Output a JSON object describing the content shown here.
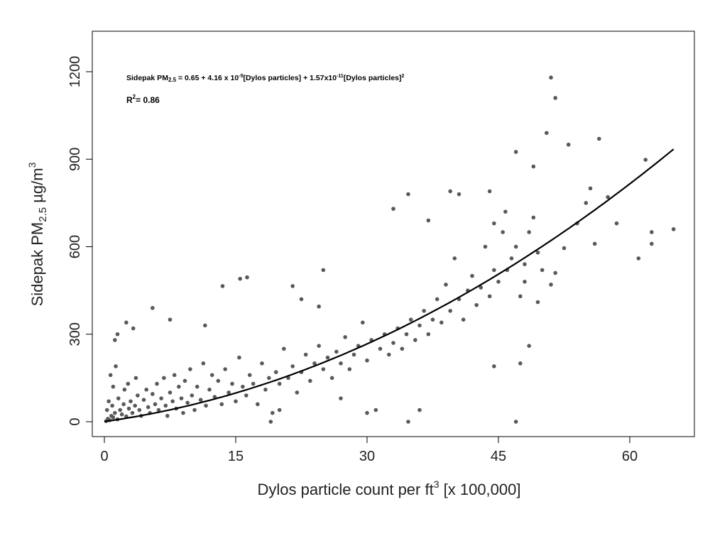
{
  "chart_data": {
    "type": "scatter",
    "title": "",
    "xlabel": "Dylos particle count per ft",
    "xlabel_sup": "3",
    "xlabel_suffix": " [x 100,000]",
    "ylabel": "Sidepak PM",
    "ylabel_sub": "2.5",
    "ylabel_suffix": " µg/m",
    "ylabel_sup": "3",
    "xlim": [
      -1.5,
      67
    ],
    "ylim": [
      -50,
      1340
    ],
    "xticks": [
      0,
      15,
      30,
      45,
      60
    ],
    "yticks": [
      0,
      300,
      600,
      900,
      1200
    ],
    "grid": false,
    "point_color": "#595959",
    "line_color": "#000000",
    "annotation": {
      "eq_prefix": "Sidepak PM",
      "eq_sub": "2.5",
      "eq_part1": " = 0.65 + 4.16 x 10",
      "eq_sup1": "-5",
      "eq_part2": "[Dylos particles] + 1.57x10",
      "eq_sup2": "-11",
      "eq_part3": "[Dylos particles]",
      "eq_sup3": "2",
      "r2_label": "R",
      "r2_sup": "2",
      "r2_value": "= 0.86"
    },
    "fit": {
      "intercept": 0.65,
      "linear": 4.16e-05,
      "quadratic": 1.57e-11,
      "x_scale": 100000,
      "x_range": [
        0,
        65
      ]
    },
    "points": [
      [
        0.2,
        2
      ],
      [
        0.4,
        10
      ],
      [
        0.6,
        5
      ],
      [
        0.8,
        20
      ],
      [
        1,
        15
      ],
      [
        1.2,
        30
      ],
      [
        1.5,
        8
      ],
      [
        1.8,
        40
      ],
      [
        2,
        25
      ],
      [
        2.2,
        60
      ],
      [
        2.5,
        18
      ],
      [
        2.8,
        45
      ],
      [
        3,
        70
      ],
      [
        3.2,
        30
      ],
      [
        3.5,
        55
      ],
      [
        3.8,
        90
      ],
      [
        4,
        40
      ],
      [
        4.2,
        20
      ],
      [
        4.5,
        75
      ],
      [
        4.8,
        110
      ],
      [
        5,
        50
      ],
      [
        5.2,
        30
      ],
      [
        5.5,
        95
      ],
      [
        5.8,
        60
      ],
      [
        6,
        130
      ],
      [
        6.2,
        40
      ],
      [
        6.5,
        80
      ],
      [
        6.8,
        150
      ],
      [
        7,
        55
      ],
      [
        7.2,
        20
      ],
      [
        7.5,
        100
      ],
      [
        7.8,
        70
      ],
      [
        8,
        160
      ],
      [
        8.2,
        45
      ],
      [
        8.5,
        120
      ],
      [
        8.8,
        80
      ],
      [
        9,
        30
      ],
      [
        9.2,
        140
      ],
      [
        9.5,
        65
      ],
      [
        9.8,
        180
      ],
      [
        10,
        90
      ],
      [
        10.3,
        40
      ],
      [
        10.6,
        120
      ],
      [
        11,
        75
      ],
      [
        11.3,
        200
      ],
      [
        11.6,
        55
      ],
      [
        12,
        110
      ],
      [
        12.3,
        160
      ],
      [
        12.6,
        85
      ],
      [
        13,
        140
      ],
      [
        13.4,
        60
      ],
      [
        13.8,
        180
      ],
      [
        14.2,
        100
      ],
      [
        14.6,
        130
      ],
      [
        15,
        70
      ],
      [
        15.4,
        220
      ],
      [
        15.8,
        120
      ],
      [
        16.2,
        90
      ],
      [
        16.6,
        160
      ],
      [
        17,
        130
      ],
      [
        17.5,
        60
      ],
      [
        18,
        200
      ],
      [
        18.4,
        110
      ],
      [
        18.8,
        150
      ],
      [
        19.2,
        30
      ],
      [
        19.6,
        170
      ],
      [
        20,
        130
      ],
      [
        20.5,
        250
      ],
      [
        21,
        150
      ],
      [
        21.5,
        190
      ],
      [
        22,
        100
      ],
      [
        22.5,
        170
      ],
      [
        23,
        230
      ],
      [
        23.5,
        140
      ],
      [
        24,
        200
      ],
      [
        24.5,
        260
      ],
      [
        25,
        180
      ],
      [
        25.5,
        220
      ],
      [
        26,
        150
      ],
      [
        26.5,
        240
      ],
      [
        27,
        200
      ],
      [
        27.5,
        290
      ],
      [
        28,
        180
      ],
      [
        28.5,
        230
      ],
      [
        29,
        260
      ],
      [
        29.5,
        340
      ],
      [
        30,
        210
      ],
      [
        30.5,
        280
      ],
      [
        31,
        40
      ],
      [
        31.5,
        250
      ],
      [
        32,
        300
      ],
      [
        32.5,
        230
      ],
      [
        33,
        270
      ],
      [
        33.5,
        320
      ],
      [
        34,
        250
      ],
      [
        34.5,
        300
      ],
      [
        35,
        350
      ],
      [
        35.5,
        280
      ],
      [
        36,
        330
      ],
      [
        36.5,
        380
      ],
      [
        37,
        300
      ],
      [
        37.5,
        350
      ],
      [
        38,
        420
      ],
      [
        38.5,
        340
      ],
      [
        39,
        470
      ],
      [
        39.5,
        380
      ],
      [
        40,
        560
      ],
      [
        40.5,
        420
      ],
      [
        41,
        350
      ],
      [
        41.5,
        450
      ],
      [
        42,
        500
      ],
      [
        42.5,
        400
      ],
      [
        43,
        460
      ],
      [
        43.5,
        600
      ],
      [
        44,
        430
      ],
      [
        44.5,
        520
      ],
      [
        45,
        480
      ],
      [
        45.5,
        650
      ],
      [
        46,
        520
      ],
      [
        46.5,
        560
      ],
      [
        47,
        600
      ],
      [
        47.5,
        430
      ],
      [
        48,
        540
      ],
      [
        48.5,
        650
      ],
      [
        49,
        700
      ],
      [
        49.5,
        580
      ],
      [
        50,
        520
      ],
      [
        0.5,
        70
      ],
      [
        1,
        120
      ],
      [
        0.7,
        160
      ],
      [
        1.3,
        190
      ],
      [
        2.3,
        110
      ],
      [
        3.6,
        150
      ],
      [
        0.3,
        40
      ],
      [
        1.6,
        80
      ],
      [
        2.7,
        130
      ],
      [
        0.9,
        55
      ],
      [
        51,
        1180
      ],
      [
        51.5,
        1110
      ],
      [
        50.5,
        990
      ],
      [
        53,
        950
      ],
      [
        56.5,
        970
      ],
      [
        47,
        925
      ],
      [
        49,
        875
      ],
      [
        61.8,
        898
      ],
      [
        65,
        660
      ],
      [
        62.5,
        650
      ],
      [
        62.5,
        610
      ],
      [
        61,
        560
      ],
      [
        58.5,
        680
      ],
      [
        55.5,
        800
      ],
      [
        57.5,
        770
      ],
      [
        55,
        750
      ],
      [
        54,
        680
      ],
      [
        56,
        610
      ],
      [
        52.5,
        595
      ],
      [
        51,
        470
      ],
      [
        51.5,
        510
      ],
      [
        48,
        480
      ],
      [
        49.5,
        410
      ],
      [
        48.5,
        260
      ],
      [
        47.5,
        200
      ],
      [
        47,
        0
      ],
      [
        44.5,
        190
      ],
      [
        34.7,
        0
      ],
      [
        33,
        730
      ],
      [
        34.7,
        780
      ],
      [
        39.5,
        790
      ],
      [
        40.5,
        780
      ],
      [
        44,
        790
      ],
      [
        45.8,
        720
      ],
      [
        44.5,
        680
      ],
      [
        37,
        690
      ],
      [
        25,
        520
      ],
      [
        16.3,
        495
      ],
      [
        15.5,
        490
      ],
      [
        13.5,
        465
      ],
      [
        21.5,
        465
      ],
      [
        22.5,
        420
      ],
      [
        24.5,
        395
      ],
      [
        5.5,
        390
      ],
      [
        7.5,
        350
      ],
      [
        2.5,
        340
      ],
      [
        3.3,
        320
      ],
      [
        1.5,
        300
      ],
      [
        1.2,
        280
      ],
      [
        11.5,
        330
      ],
      [
        30,
        30
      ],
      [
        36,
        40
      ],
      [
        27,
        80
      ],
      [
        19,
        0
      ],
      [
        20,
        40
      ]
    ]
  }
}
